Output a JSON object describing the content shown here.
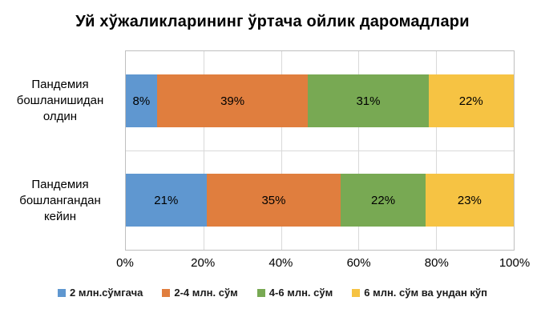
{
  "title": "Уй хўжаликларининг ўртача ойлик даромадлари",
  "chart_data": {
    "type": "bar",
    "orientation": "horizontal",
    "stacked": true,
    "title": "Уй хўжаликларининг ўртача ойлик даромадлари",
    "categories": [
      "Пандемия бошланишидан олдин",
      "Пандемия бошлангандан кейин"
    ],
    "series": [
      {
        "name": "2 млн.сўмгача",
        "color": "#5f97d0",
        "values": [
          8,
          21
        ]
      },
      {
        "name": "2-4 млн. сўм",
        "color": "#e07e3e",
        "values": [
          39,
          35
        ]
      },
      {
        "name": "4-6 млн. сўм",
        "color": "#78a953",
        "values": [
          31,
          22
        ]
      },
      {
        "name": "6 млн. сўм ва ундан кўп",
        "color": "#f6c343",
        "values": [
          22,
          23
        ]
      }
    ],
    "x_ticks": [
      "0%",
      "20%",
      "40%",
      "60%",
      "80%",
      "100%"
    ],
    "xlim": [
      0,
      100
    ],
    "grid": true,
    "gridline_color": "#d9d9d9",
    "plot_border_color": "#bfbfbf",
    "data_label_suffix": "%",
    "legend_position": "bottom"
  }
}
